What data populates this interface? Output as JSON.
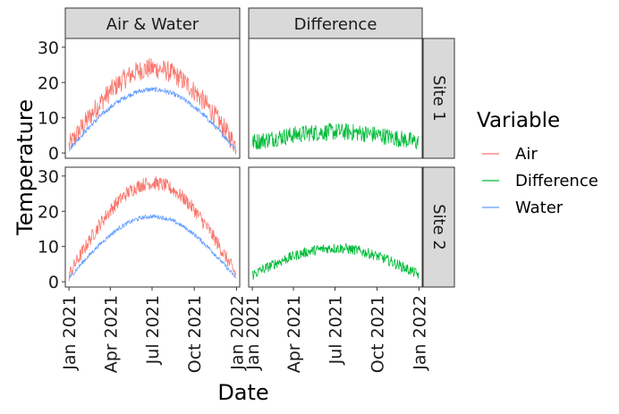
{
  "chart_data": {
    "type": "line",
    "xlabel": "Date",
    "ylabel": "Temperature",
    "ylim": [
      -1.5,
      32.5
    ],
    "y_ticks": [
      0,
      10,
      20,
      30
    ],
    "x_ticks": [
      "Jan 2021",
      "Apr 2021",
      "Jul 2021",
      "Oct 2021",
      "Jan 2022"
    ],
    "x_tick_days": [
      0,
      90,
      181,
      273,
      365
    ],
    "x_range_days": [
      -8,
      372
    ],
    "facet_columns": [
      "Air & Water",
      "Difference"
    ],
    "facet_rows": [
      "Site 1",
      "Site 2"
    ],
    "legend": {
      "title": "Variable",
      "position": "right",
      "entries": [
        {
          "name": "Air",
          "color": "#F8766D"
        },
        {
          "name": "Difference",
          "color": "#00BA38"
        },
        {
          "name": "Water",
          "color": "#619CFF"
        }
      ]
    },
    "series_model": {
      "description": "Daily values over 2021; seasonal curve peaks at day 182",
      "Site 1": {
        "Air": {
          "start": 2,
          "peak": 24,
          "noise": 3
        },
        "Water": {
          "start": 1,
          "peak": 18,
          "noise": 0.7
        },
        "Difference": {
          "start": 3,
          "peak": 6,
          "noise": 2.5
        }
      },
      "Site 2": {
        "Air": {
          "start": 2,
          "peak": 28,
          "noise": 2
        },
        "Water": {
          "start": 1,
          "peak": 18.5,
          "noise": 0.6
        },
        "Difference": {
          "start": 2,
          "peak": 9.5,
          "noise": 1.5
        }
      }
    }
  }
}
